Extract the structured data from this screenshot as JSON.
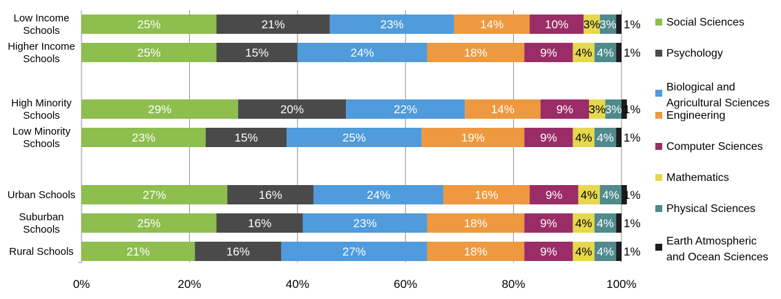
{
  "chart_data": {
    "type": "bar",
    "orientation": "horizontal",
    "stacked": "percent",
    "title": "",
    "xlabel": "",
    "ylabel": "",
    "xlim": [
      0,
      100
    ],
    "x_ticks": [
      "0%",
      "20%",
      "40%",
      "60%",
      "80%",
      "100%"
    ],
    "grid": "vertical",
    "legend_position": "right",
    "categories": [
      [
        "Low Income",
        "Schools"
      ],
      [
        "Higher Income",
        "Schools"
      ],
      [
        "High Minority",
        "Schools"
      ],
      [
        "Low Minority",
        "Schools"
      ],
      [
        "Urban Schools"
      ],
      [
        "Suburban",
        "Schools"
      ],
      [
        "Rural Schools"
      ]
    ],
    "series": [
      {
        "name": "Social Sciences",
        "color": "#8DBE4E",
        "label_color": "#ffffff",
        "values": [
          25,
          25,
          29,
          23,
          27,
          25,
          21
        ]
      },
      {
        "name": "Psychology",
        "color": "#4A4A4A",
        "label_color": "#ffffff",
        "values": [
          21,
          15,
          20,
          15,
          16,
          16,
          16
        ]
      },
      {
        "name": "Biological and\nAgricultural Sciences",
        "color": "#4F9BDC",
        "label_color": "#ffffff",
        "values": [
          23,
          24,
          22,
          25,
          24,
          23,
          27
        ]
      },
      {
        "name": "Engineering",
        "color": "#EE9940",
        "label_color": "#ffffff",
        "values": [
          14,
          18,
          14,
          19,
          16,
          18,
          18
        ]
      },
      {
        "name": "Computer Sciences",
        "color": "#9B2D66",
        "label_color": "#ffffff",
        "values": [
          10,
          9,
          9,
          9,
          9,
          9,
          9
        ]
      },
      {
        "name": "Mathematics",
        "color": "#E6D84E",
        "label_color": "#000000",
        "values": [
          3,
          4,
          3,
          4,
          4,
          4,
          4
        ]
      },
      {
        "name": "Physical Sciences",
        "color": "#4F8A8C",
        "label_color": "#ffffff",
        "values": [
          3,
          4,
          3,
          4,
          4,
          4,
          4
        ]
      },
      {
        "name": "Earth Atmospheric\nand Ocean Sciences",
        "color": "#1C1C1C",
        "label_color": "#000000",
        "values": [
          1,
          1,
          1,
          1,
          1,
          1,
          1
        ]
      }
    ],
    "data_labels": [
      [
        "25%",
        "21%",
        "23%",
        "14%",
        "10%",
        "3%",
        "3%",
        "1%"
      ],
      [
        "25%",
        "15%",
        "24%",
        "18%",
        "9%",
        "4%",
        "4%",
        "1%"
      ],
      [
        "29%",
        "20%",
        "22%",
        "14%",
        "9%",
        "3%",
        "3%",
        "1%"
      ],
      [
        "23%",
        "15%",
        "25%",
        "19%",
        "9%",
        "4%",
        "4%",
        "1%"
      ],
      [
        "27%",
        "16%",
        "24%",
        "16%",
        "9%",
        "4%",
        "4%",
        "1%"
      ],
      [
        "25%",
        "16%",
        "23%",
        "18%",
        "9%",
        "4%",
        "4%",
        "1%"
      ],
      [
        "21%",
        "16%",
        "27%",
        "18%",
        "9%",
        "4%",
        "4%",
        "1%"
      ]
    ]
  }
}
